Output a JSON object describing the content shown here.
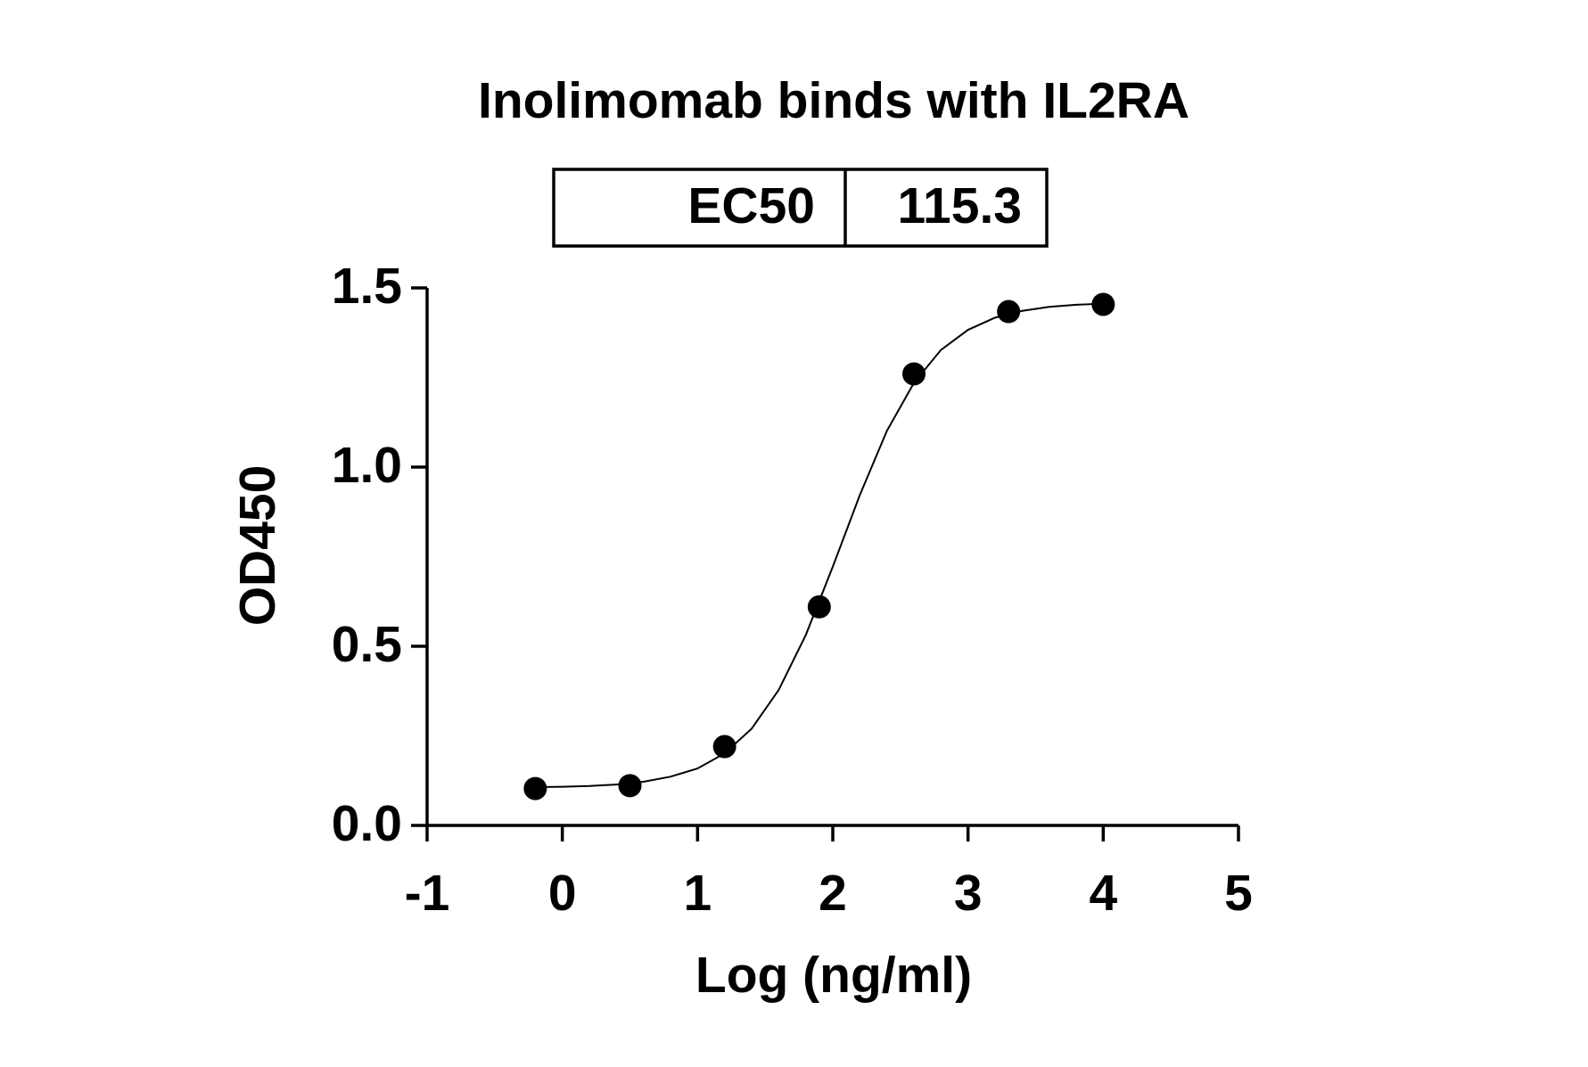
{
  "chart_data": {
    "type": "scatter",
    "title": "Inolimomab binds with IL2RA",
    "annotation": {
      "label": "EC50",
      "value": 115.3
    },
    "x_label": "Log (ng/ml)",
    "y_label": "OD450",
    "x": [
      -0.2,
      0.5,
      1.2,
      1.9,
      2.6,
      3.3,
      4.0
    ],
    "values": [
      0.103,
      0.111,
      0.22,
      0.61,
      1.26,
      1.434,
      1.454
    ],
    "color": "#000000",
    "curve": {
      "x": [
        -0.2,
        0,
        0.2,
        0.4,
        0.6,
        0.8,
        1.0,
        1.2,
        1.4,
        1.6,
        1.8,
        2.0,
        2.2,
        2.4,
        2.6,
        2.8,
        3.0,
        3.2,
        3.4,
        3.6,
        3.8,
        4.0
      ],
      "values": [
        0.107,
        0.108,
        0.11,
        0.114,
        0.122,
        0.136,
        0.159,
        0.201,
        0.27,
        0.378,
        0.531,
        0.722,
        0.922,
        1.101,
        1.235,
        1.327,
        1.383,
        1.417,
        1.436,
        1.447,
        1.453,
        1.456
      ]
    },
    "xlim": [
      -1,
      5
    ],
    "xticks": [
      -1,
      0,
      1,
      2,
      3,
      4,
      5
    ],
    "ylim": [
      0,
      1.5
    ],
    "yticks": [
      {
        "value": 0,
        "label": "0.0"
      },
      {
        "value": 0.5,
        "label": "0.5"
      },
      {
        "value": 1,
        "label": "1.0"
      },
      {
        "value": 1.5,
        "label": "1.5"
      }
    ]
  }
}
